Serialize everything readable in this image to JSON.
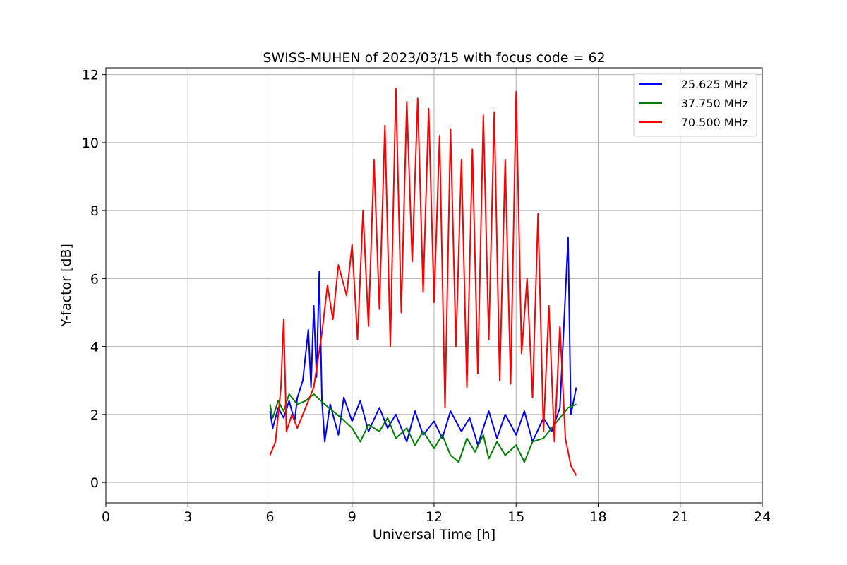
{
  "chart_data": {
    "type": "line",
    "title": "SWISS-MUHEN of 2023/03/15 with focus code = 62",
    "xlabel": "Universal Time [h]",
    "ylabel": "Y-factor [dB]",
    "xlim": [
      0,
      24
    ],
    "ylim": [
      -0.6,
      12.2
    ],
    "x_ticks": [
      0,
      3,
      6,
      9,
      12,
      15,
      18,
      21,
      24
    ],
    "y_ticks": [
      0,
      2,
      4,
      6,
      8,
      10,
      12
    ],
    "grid": true,
    "legend_position": "top-right",
    "series": [
      {
        "name": "25.625 MHz",
        "color": "#0000ff",
        "x": [
          6.0,
          6.1,
          6.3,
          6.5,
          6.7,
          6.9,
          7.0,
          7.2,
          7.4,
          7.5,
          7.6,
          7.7,
          7.8,
          7.9,
          8.0,
          8.2,
          8.5,
          8.7,
          9.0,
          9.3,
          9.6,
          10.0,
          10.3,
          10.6,
          11.0,
          11.3,
          11.6,
          12.0,
          12.3,
          12.6,
          13.0,
          13.3,
          13.6,
          14.0,
          14.3,
          14.6,
          15.0,
          15.3,
          15.6,
          16.0,
          16.3,
          16.6,
          16.9,
          17.0,
          17.2
        ],
        "y": [
          2.1,
          1.6,
          2.2,
          1.9,
          2.4,
          1.8,
          2.5,
          3.0,
          4.5,
          2.8,
          5.2,
          3.1,
          6.2,
          2.4,
          1.2,
          2.3,
          1.4,
          2.5,
          1.8,
          2.4,
          1.5,
          2.2,
          1.6,
          2.0,
          1.2,
          2.1,
          1.4,
          1.8,
          1.3,
          2.1,
          1.5,
          1.9,
          1.1,
          2.1,
          1.3,
          2.0,
          1.4,
          2.1,
          1.2,
          1.9,
          1.5,
          2.2,
          7.2,
          2.0,
          2.8
        ]
      },
      {
        "name": "37.750 MHz",
        "color": "#008000",
        "x": [
          6.0,
          6.1,
          6.3,
          6.5,
          6.7,
          7.0,
          7.3,
          7.6,
          8.0,
          8.3,
          8.6,
          9.0,
          9.3,
          9.6,
          10.0,
          10.3,
          10.6,
          11.0,
          11.3,
          11.6,
          12.0,
          12.3,
          12.6,
          12.9,
          13.2,
          13.5,
          13.8,
          14.0,
          14.3,
          14.6,
          15.0,
          15.3,
          15.6,
          16.0,
          16.3,
          16.6,
          16.9,
          17.2
        ],
        "y": [
          2.3,
          1.9,
          2.4,
          2.1,
          2.6,
          2.3,
          2.4,
          2.6,
          2.3,
          2.1,
          1.9,
          1.6,
          1.2,
          1.7,
          1.5,
          1.9,
          1.3,
          1.6,
          1.1,
          1.5,
          1.0,
          1.4,
          0.8,
          0.6,
          1.3,
          0.9,
          1.4,
          0.7,
          1.2,
          0.8,
          1.1,
          0.6,
          1.2,
          1.3,
          1.6,
          1.9,
          2.2,
          2.3
        ]
      },
      {
        "name": "70.500 MHz",
        "color": "#ff0000",
        "x": [
          6.0,
          6.2,
          6.4,
          6.5,
          6.6,
          6.8,
          7.0,
          7.3,
          7.6,
          7.9,
          8.1,
          8.3,
          8.5,
          8.8,
          9.0,
          9.2,
          9.4,
          9.6,
          9.8,
          10.0,
          10.2,
          10.4,
          10.6,
          10.8,
          11.0,
          11.2,
          11.4,
          11.6,
          11.8,
          12.0,
          12.2,
          12.4,
          12.6,
          12.8,
          13.0,
          13.2,
          13.4,
          13.6,
          13.8,
          14.0,
          14.2,
          14.4,
          14.6,
          14.8,
          15.0,
          15.2,
          15.4,
          15.6,
          15.8,
          16.0,
          16.2,
          16.4,
          16.6,
          16.8,
          17.0,
          17.2
        ],
        "y": [
          0.8,
          1.2,
          2.8,
          4.8,
          1.5,
          2.0,
          1.6,
          2.2,
          2.8,
          4.4,
          5.8,
          4.8,
          6.4,
          5.5,
          7.0,
          4.2,
          8.0,
          4.6,
          9.5,
          5.1,
          10.5,
          4.0,
          11.6,
          5.0,
          11.2,
          6.5,
          11.3,
          5.6,
          11.0,
          5.3,
          10.2,
          2.2,
          10.4,
          4.0,
          9.5,
          2.8,
          9.8,
          3.2,
          10.8,
          4.2,
          10.9,
          3.0,
          9.5,
          2.9,
          11.5,
          3.8,
          6.0,
          2.5,
          7.9,
          1.5,
          5.2,
          1.2,
          4.6,
          1.3,
          0.5,
          0.2
        ]
      }
    ]
  }
}
